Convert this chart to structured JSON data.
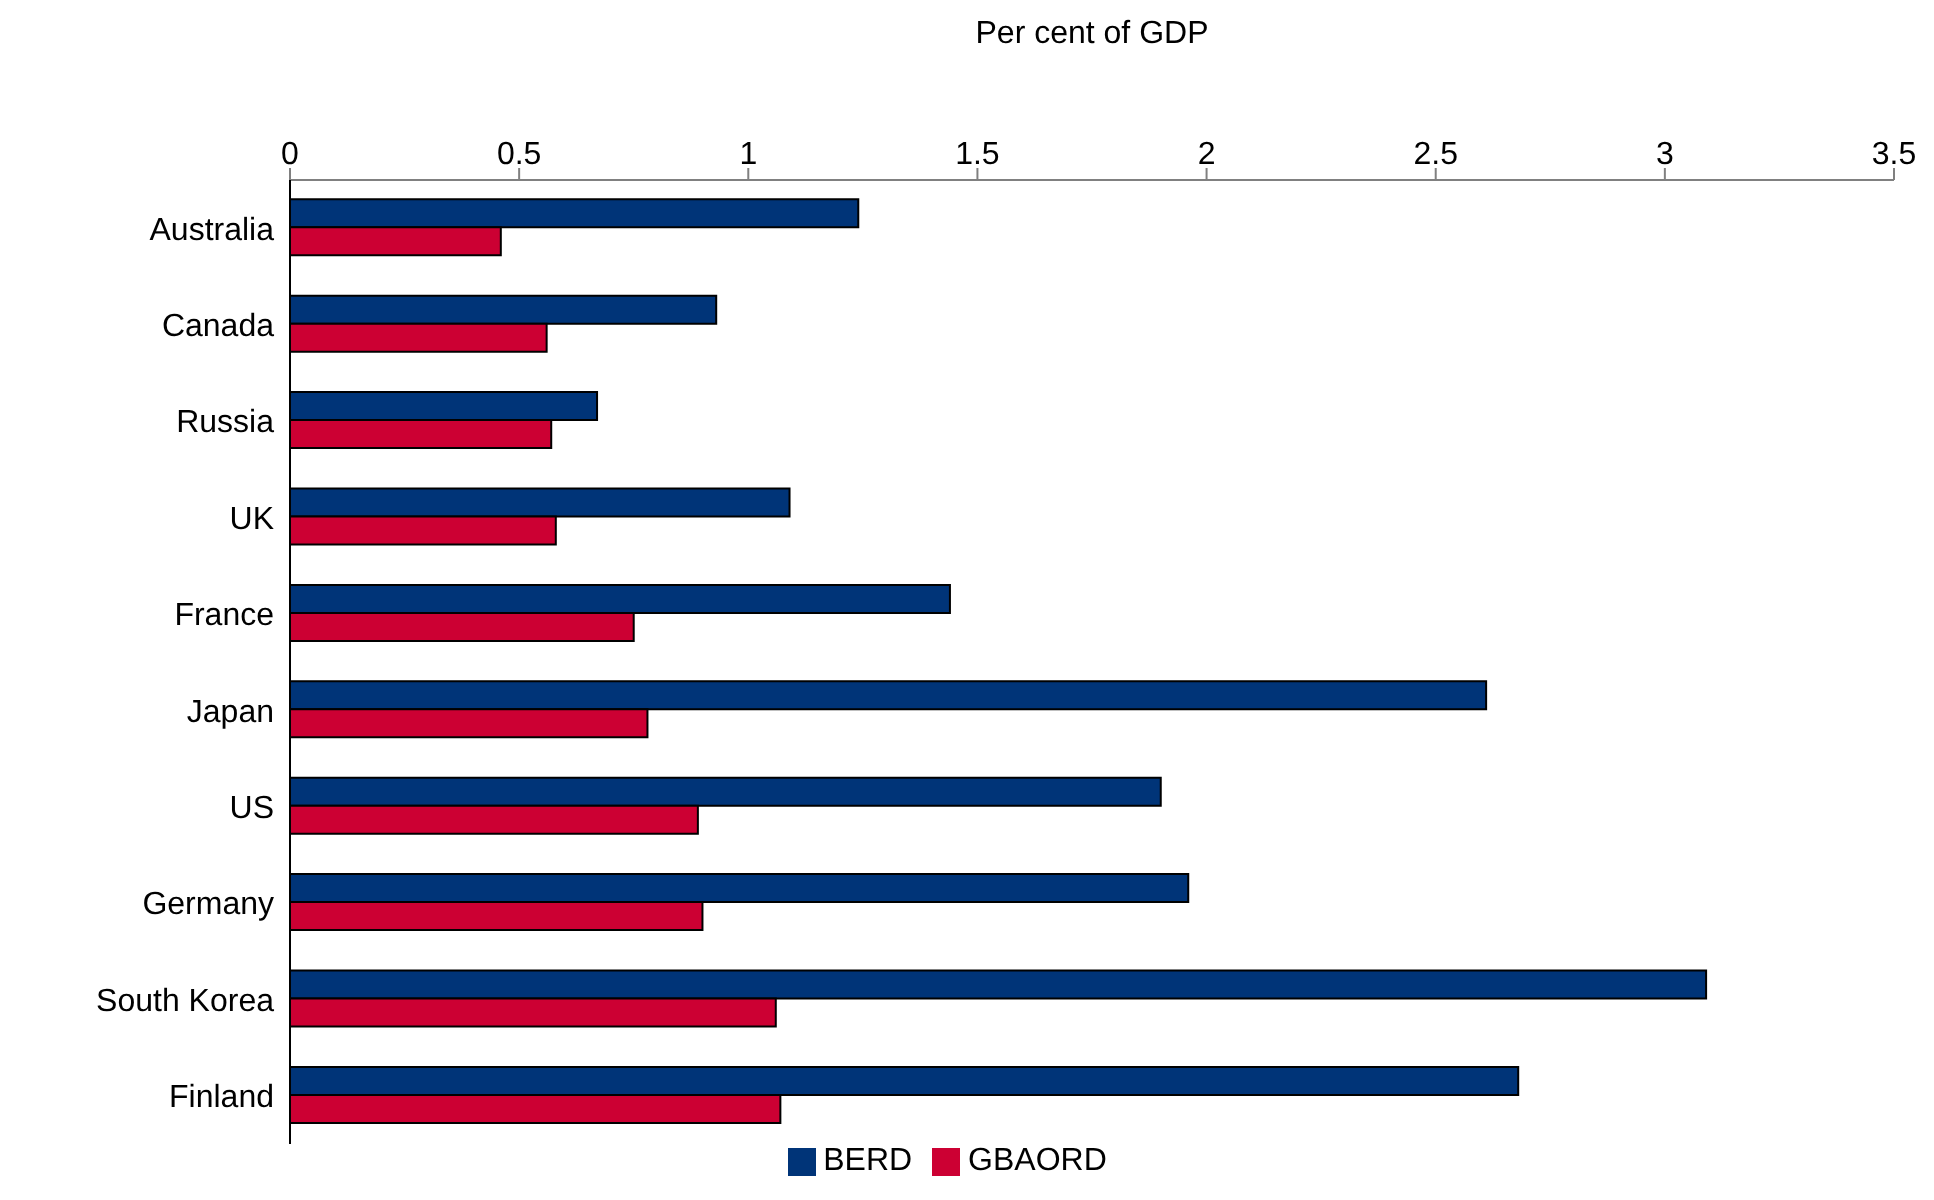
{
  "chart_data": {
    "type": "bar",
    "orientation": "horizontal",
    "xlabel": "Per cent of GDP",
    "categories": [
      "Australia",
      "Canada",
      "Russia",
      "UK",
      "France",
      "Japan",
      "US",
      "Germany",
      "South Korea",
      "Finland"
    ],
    "series": [
      {
        "name": "BERD",
        "color": "#003478",
        "values": [
          1.24,
          0.93,
          0.67,
          1.09,
          1.44,
          2.61,
          1.9,
          1.96,
          3.09,
          2.68
        ]
      },
      {
        "name": "GBAORD",
        "color": "#cc0033",
        "values": [
          0.46,
          0.56,
          0.57,
          0.58,
          0.75,
          0.78,
          0.89,
          0.9,
          1.06,
          1.07
        ]
      }
    ],
    "xlim": [
      0,
      3.5
    ],
    "xticks": [
      0,
      0.5,
      1,
      1.5,
      2,
      2.5,
      3,
      3.5
    ],
    "grid": false,
    "legend": "bottom"
  }
}
